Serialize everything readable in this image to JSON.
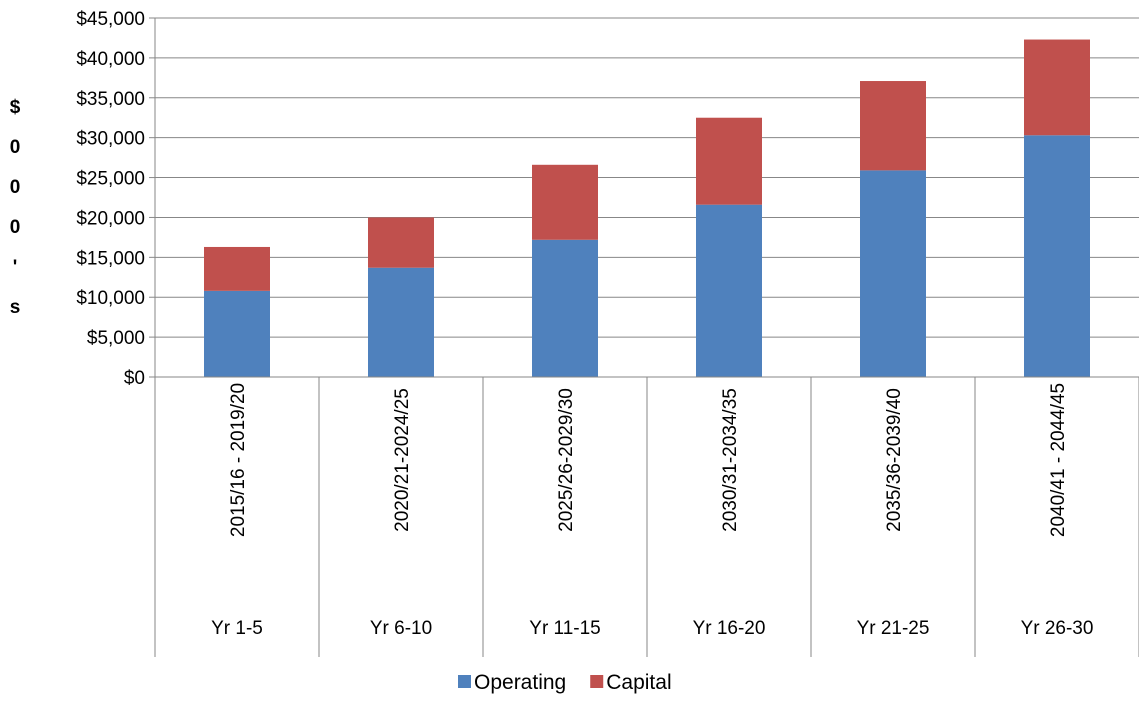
{
  "chart_data": {
    "type": "bar",
    "stacked": true,
    "title": "",
    "xlabel": "",
    "ylabel": "$000's",
    "ylabel_chars": [
      "$",
      "0",
      "0",
      "0",
      "'",
      "s"
    ],
    "ylim": [
      0,
      45000
    ],
    "yticks": [
      "$0",
      "$5,000",
      "$10,000",
      "$15,000",
      "$20,000",
      "$25,000",
      "$30,000",
      "$35,000",
      "$40,000",
      "$45,000"
    ],
    "grid": true,
    "legend_position": "bottom",
    "categories": [
      "2015/16 - 2019/20",
      "2020/21-2024/25",
      "2025/26-2029/30",
      "2030/31-2034/35",
      "2035/36-2039/40",
      "2040/41 - 2044/45"
    ],
    "groups": [
      "Yr 1-5",
      "Yr 6-10",
      "Yr 11-15",
      "Yr 16-20",
      "Yr 21-25",
      "Yr 26-30"
    ],
    "series": [
      {
        "name": "Operating",
        "color": "#4F81BD",
        "values": [
          10800,
          13700,
          17200,
          21600,
          25900,
          30300
        ]
      },
      {
        "name": "Capital",
        "color": "#C0504D",
        "values": [
          5500,
          6300,
          9400,
          10900,
          11200,
          12000
        ]
      }
    ]
  }
}
